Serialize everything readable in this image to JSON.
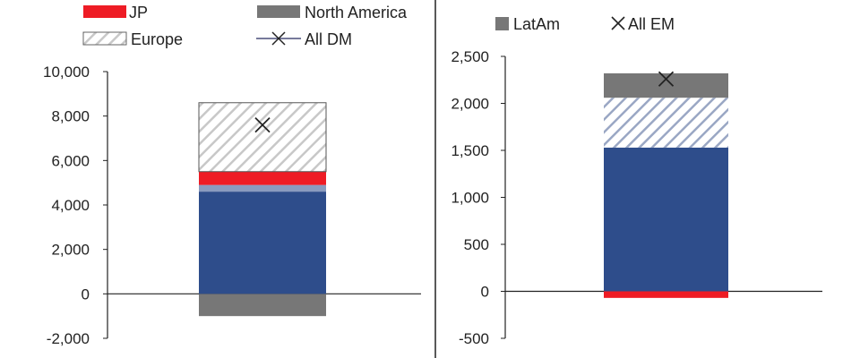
{
  "legend": {
    "jp": {
      "label": "JP",
      "color": "#ee1c25"
    },
    "north_america": {
      "label": "North America",
      "color": "#777777"
    },
    "europe": {
      "label": "Europe",
      "color": "#ffffff"
    },
    "all_dm": {
      "label": "All DM"
    },
    "latam": {
      "label": "LatAm",
      "color": "#777777"
    },
    "all_em": {
      "label": "All EM"
    }
  },
  "colors": {
    "base_blue": "#2e4d8b",
    "jp_red": "#ee1c25",
    "na_grey": "#777777",
    "hatch_light": "#c8c8c8",
    "hatch_blue": "#9aa7c4",
    "axis": "#222222"
  },
  "chart_data": [
    {
      "type": "bar",
      "stacked": true,
      "categories": [
        ""
      ],
      "ylim": [
        -2000,
        10000
      ],
      "ytick_labels": [
        "-2,000",
        "0",
        "2,000",
        "4,000",
        "6,000",
        "8,000",
        "10,000"
      ],
      "series": [
        {
          "name": "North America",
          "values": [
            -1000
          ],
          "style": "na"
        },
        {
          "values": [
            4600
          ],
          "style": "base"
        },
        {
          "values": [
            300
          ],
          "style": "thin"
        },
        {
          "name": "JP",
          "values": [
            600
          ],
          "style": "jp"
        },
        {
          "name": "Europe",
          "values": [
            3100
          ],
          "style": "europe"
        }
      ],
      "markers": [
        {
          "name": "All DM",
          "value": 7600
        }
      ]
    },
    {
      "type": "bar",
      "stacked": true,
      "categories": [
        ""
      ],
      "ylim": [
        -500,
        2500
      ],
      "ytick_labels": [
        "-500",
        "0",
        "500",
        "1,000",
        "1,500",
        "2,000",
        "2,500"
      ],
      "series": [
        {
          "values": [
            -70
          ],
          "style": "jp"
        },
        {
          "values": [
            1530
          ],
          "style": "base"
        },
        {
          "values": [
            530
          ],
          "style": "bluehatch"
        },
        {
          "name": "LatAm",
          "values": [
            260
          ],
          "style": "na"
        }
      ],
      "markers": [
        {
          "name": "All EM",
          "value": 2260
        }
      ]
    }
  ]
}
